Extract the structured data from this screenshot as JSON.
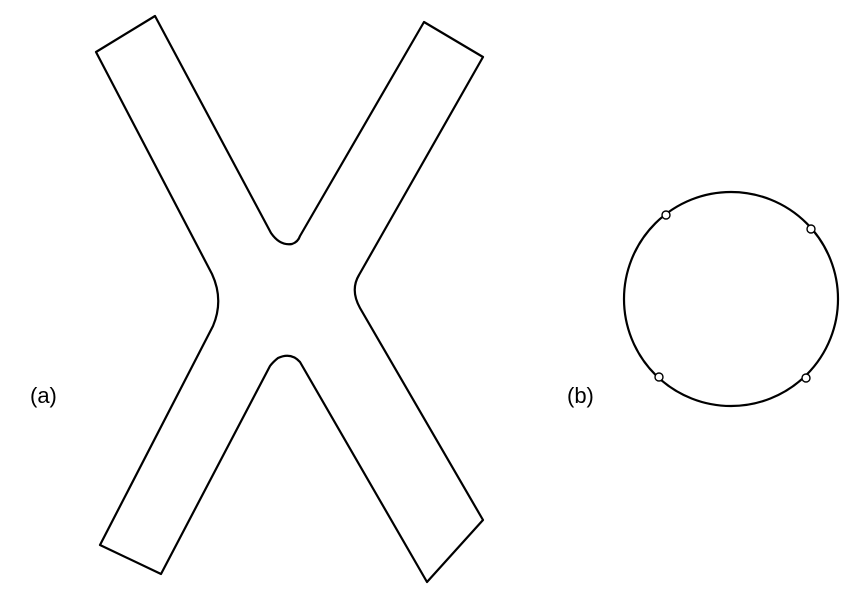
{
  "panels": [
    {
      "id": "a",
      "label": "(a)",
      "shape": "x-shaped cross"
    },
    {
      "id": "b",
      "label": "(b)",
      "shape": "circle with four small notches"
    }
  ],
  "colors": {
    "stroke": "#000000",
    "background": "#ffffff"
  }
}
